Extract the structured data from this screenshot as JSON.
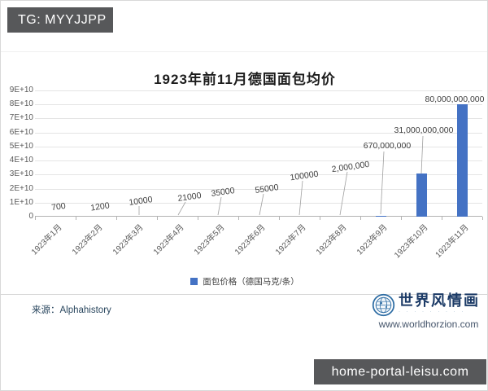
{
  "watermarks": {
    "tg_badge": "TG: MYYJJPP",
    "home_badge": "home-portal-leisu.com"
  },
  "chart_data": {
    "type": "bar",
    "title": "1923年前11月德国面包均价",
    "categories": [
      "1923年1月",
      "1923年2月",
      "1923年3月",
      "1923年4月",
      "1923年5月",
      "1923年6月",
      "1923年7月",
      "1923年8月",
      "1923年9月",
      "1923年10月",
      "1923年11月"
    ],
    "values": [
      700,
      1200,
      10000,
      21000,
      35000,
      55000,
      100000,
      2000000,
      670000000,
      31000000000,
      80000000000
    ],
    "data_labels": [
      "700",
      "1200",
      "10000",
      "21000",
      "35000",
      "55000",
      "100000",
      "2,000,000",
      "670,000,000",
      "31,000,000,000",
      "80,000,000,000"
    ],
    "series_name": "面包价格（德国马克/条）",
    "y_ticks": [
      "9E+10",
      "8E+10",
      "7E+10",
      "6E+10",
      "5E+10",
      "4E+10",
      "3E+10",
      "2E+10",
      "1E+10",
      "0"
    ],
    "ylim": [
      0,
      90000000000
    ],
    "xlabel": "",
    "ylabel": "",
    "grid": true,
    "legend_position": "bottom",
    "bar_color": "#4472C4"
  },
  "footer": {
    "source": "来源：Alphahistory",
    "logo_title": "世界风情画",
    "logo_tagline": "· · · · · · · · ·",
    "logo_url": "www.worldhorzion.com"
  }
}
